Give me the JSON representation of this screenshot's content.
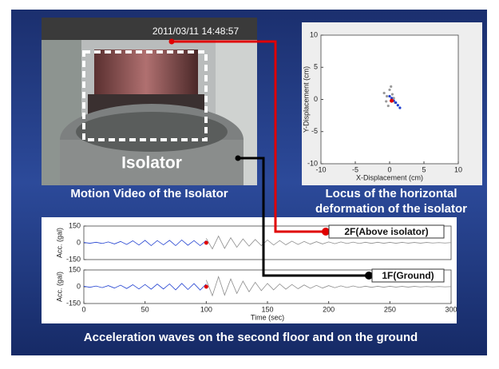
{
  "video": {
    "timestamp": "2011/03/11 14:48:57",
    "label": "Isolator",
    "caption": "Motion Video of the Isolator"
  },
  "locus_caption": [
    "Locus of the horizontal",
    "deformation of the isolator"
  ],
  "waves_caption": "Acceleration waves on the second floor and on the ground",
  "annotations": [
    {
      "label": "2F(Above isolator)",
      "color": "#e00000"
    },
    {
      "label": "1F(Ground)",
      "color": "#000000"
    }
  ],
  "chart_data": [
    {
      "type": "scatter",
      "xlabel": "X-Displacement (cm)",
      "ylabel": "Y-Displacement (cm)",
      "xlim": [
        -10,
        10
      ],
      "ylim": [
        -10,
        10
      ],
      "xticks": [
        -10,
        -5,
        0,
        5,
        10
      ],
      "yticks": [
        -10,
        -5,
        0,
        5,
        10
      ],
      "series": [
        {
          "color": "#9a9a9a",
          "x": [
            -0.8,
            -0.4,
            0,
            0.4,
            0.8,
            -0.2,
            0.2,
            -0.5,
            0.6
          ],
          "values": [
            1,
            0.5,
            1.5,
            0.8,
            -0.5,
            -1,
            2,
            -0.3,
            0.2
          ]
        },
        {
          "color": "#1f3fd0",
          "x": [
            0,
            0.3,
            0.6,
            0.9,
            1.2,
            1.5
          ],
          "values": [
            0.5,
            0.2,
            -0.2,
            -0.5,
            -0.9,
            -1.3
          ]
        }
      ],
      "current": {
        "x": 0.3,
        "y": -0.2,
        "color": "#e00000"
      }
    },
    {
      "type": "line",
      "ylabel": "Acc. (gal)",
      "xlim": [
        0,
        300
      ],
      "ylim": [
        -150,
        150
      ],
      "yticks": [
        -150,
        0,
        150
      ],
      "series": [
        {
          "color": "#1f3fd0",
          "x": [
            0,
            5,
            10,
            15,
            20,
            25,
            30,
            35,
            40,
            45,
            50,
            55,
            60,
            65,
            70,
            75,
            80,
            85,
            90,
            95,
            100
          ],
          "values": [
            3,
            -4,
            5,
            -6,
            8,
            -10,
            12,
            -15,
            18,
            -20,
            22,
            -25,
            20,
            -18,
            22,
            -25,
            25,
            -22,
            20,
            -25,
            20
          ]
        },
        {
          "color": "#8c8c8c",
          "x": [
            100,
            105,
            110,
            115,
            120,
            125,
            130,
            135,
            140,
            145,
            150,
            155,
            160,
            165,
            170,
            175,
            180,
            185,
            190,
            195,
            200,
            205,
            210,
            215,
            220,
            225,
            230,
            235,
            240,
            245,
            250,
            255,
            260,
            265,
            270,
            275,
            280,
            285,
            290,
            295,
            300
          ],
          "values": [
            40,
            -55,
            60,
            -50,
            45,
            -40,
            35,
            -30,
            30,
            -25,
            25,
            -20,
            20,
            -18,
            15,
            -15,
            12,
            -12,
            10,
            -10,
            8,
            -8,
            8,
            -6,
            6,
            -6,
            5,
            -5,
            5,
            -4,
            4,
            -4,
            4,
            -3,
            3,
            -3,
            3,
            -2,
            2,
            -2,
            2
          ]
        }
      ],
      "current": {
        "x": 100,
        "y": 0,
        "color": "#e00000"
      }
    },
    {
      "type": "line",
      "ylabel": "Acc. (gal)",
      "xlabel": "Time (sec)",
      "xlim": [
        0,
        300
      ],
      "ylim": [
        -150,
        150
      ],
      "yticks": [
        -150,
        0,
        150
      ],
      "xticks": [
        0,
        50,
        100,
        150,
        200,
        250,
        300
      ],
      "series": [
        {
          "color": "#1f3fd0",
          "x": [
            0,
            5,
            10,
            15,
            20,
            25,
            30,
            35,
            40,
            45,
            50,
            55,
            60,
            65,
            70,
            75,
            80,
            85,
            90,
            95,
            100
          ],
          "values": [
            4,
            -5,
            6,
            -8,
            10,
            -12,
            14,
            -16,
            18,
            -20,
            20,
            -22,
            24,
            -20,
            25,
            -28,
            30,
            -25,
            28,
            -30,
            25
          ]
        },
        {
          "color": "#8c8c8c",
          "x": [
            100,
            105,
            110,
            115,
            120,
            125,
            130,
            135,
            140,
            145,
            150,
            155,
            160,
            165,
            170,
            175,
            180,
            185,
            190,
            195,
            200,
            205,
            210,
            215,
            220,
            225,
            230,
            235,
            240,
            245,
            250,
            255,
            260,
            265,
            270,
            275,
            280,
            285,
            290,
            295,
            300
          ],
          "values": [
            60,
            -80,
            90,
            -75,
            70,
            -60,
            50,
            -45,
            40,
            -35,
            30,
            -28,
            25,
            -22,
            20,
            -18,
            16,
            -14,
            12,
            -12,
            10,
            -9,
            8,
            -7,
            7,
            -6,
            5,
            -5,
            4,
            -4,
            4,
            -3,
            3,
            -3,
            3,
            -2,
            2,
            -2,
            2,
            -1,
            1
          ]
        }
      ],
      "current": {
        "x": 100,
        "y": 0,
        "color": "#e00000"
      }
    }
  ]
}
